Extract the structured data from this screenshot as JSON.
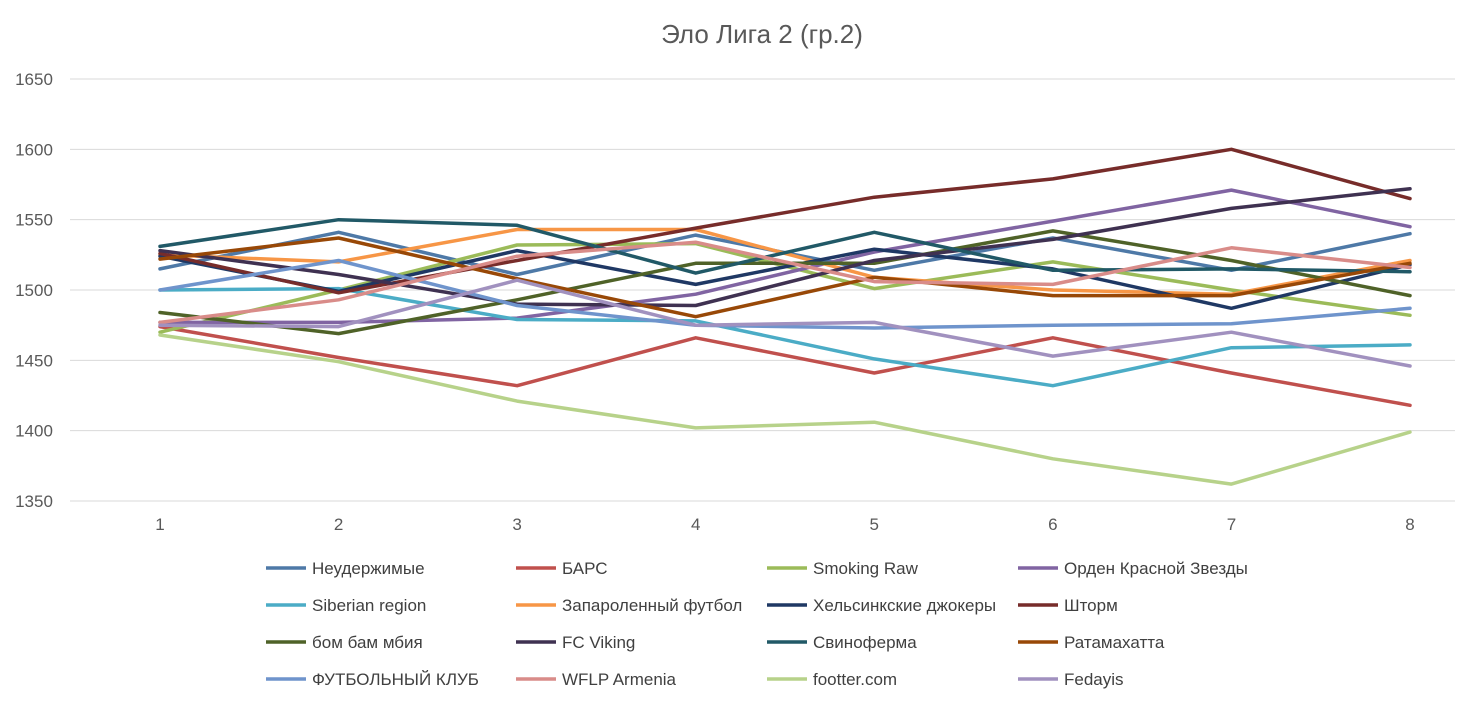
{
  "chart_data": {
    "type": "line",
    "title": "Эло Лига 2 (гр.2)",
    "x": [
      1,
      2,
      3,
      4,
      5,
      6,
      7,
      8
    ],
    "xticks": [
      "1",
      "2",
      "3",
      "4",
      "5",
      "6",
      "7",
      "8"
    ],
    "yticks": [
      "1350",
      "1400",
      "1450",
      "1500",
      "1550",
      "1600",
      "1650"
    ],
    "ylim": [
      1350,
      1650
    ],
    "grid": true,
    "legend_position": "bottom",
    "series": [
      {
        "name": "Неудержимые",
        "color": "#4E79A7",
        "values": [
          1515,
          1541,
          1511,
          1539,
          1514,
          1537,
          1514,
          1540
        ]
      },
      {
        "name": "БАРС",
        "color": "#C0504D",
        "values": [
          1474,
          1452,
          1432,
          1466,
          1441,
          1466,
          1441,
          1418
        ]
      },
      {
        "name": "Smoking Raw",
        "color": "#9BBB59",
        "values": [
          1470,
          1500,
          1532,
          1533,
          1501,
          1520,
          1500,
          1482
        ]
      },
      {
        "name": "Орден Красной Звезды",
        "color": "#8064A2",
        "values": [
          1477,
          1477,
          1480,
          1497,
          1527,
          1549,
          1571,
          1545
        ]
      },
      {
        "name": "Siberian region",
        "color": "#4BACC6",
        "values": [
          1500,
          1501,
          1479,
          1478,
          1451,
          1432,
          1459,
          1461
        ]
      },
      {
        "name": "Запароленный футбол",
        "color": "#F79646",
        "values": [
          1525,
          1520,
          1543,
          1543,
          1509,
          1500,
          1497,
          1521
        ]
      },
      {
        "name": "Хельсинкские джокеры",
        "color": "#1F3864",
        "values": [
          1524,
          1499,
          1528,
          1504,
          1529,
          1515,
          1487,
          1518
        ]
      },
      {
        "name": "Шторм",
        "color": "#772C2A",
        "values": [
          1526,
          1498,
          1521,
          1544,
          1566,
          1579,
          1600,
          1565
        ]
      },
      {
        "name": "бом бам мбия",
        "color": "#4F6228",
        "values": [
          1484,
          1469,
          1493,
          1519,
          1519,
          1542,
          1521,
          1496
        ]
      },
      {
        "name": "FC Viking",
        "color": "#3F3151",
        "values": [
          1528,
          1511,
          1490,
          1489,
          1521,
          1536,
          1558,
          1572
        ]
      },
      {
        "name": "Свиноферма",
        "color": "#215967",
        "values": [
          1531,
          1550,
          1546,
          1512,
          1541,
          1514,
          1515,
          1513
        ]
      },
      {
        "name": "Ратамахатта",
        "color": "#984807",
        "values": [
          1522,
          1537,
          1508,
          1481,
          1509,
          1496,
          1496,
          1519
        ]
      },
      {
        "name": "ФУТБОЛЬНЫЙ КЛУБ",
        "color": "#6F94CC",
        "values": [
          1500,
          1521,
          1489,
          1475,
          1473,
          1475,
          1476,
          1487
        ]
      },
      {
        "name": "WFLP Armenia",
        "color": "#D98C89",
        "values": [
          1477,
          1493,
          1524,
          1534,
          1506,
          1504,
          1530,
          1516
        ]
      },
      {
        "name": "footter.com",
        "color": "#B7D28A",
        "values": [
          1468,
          1449,
          1421,
          1402,
          1406,
          1380,
          1362,
          1399
        ]
      },
      {
        "name": "Fedayis",
        "color": "#A191BF",
        "values": [
          1475,
          1474,
          1507,
          1475,
          1477,
          1453,
          1470,
          1446
        ]
      }
    ]
  }
}
